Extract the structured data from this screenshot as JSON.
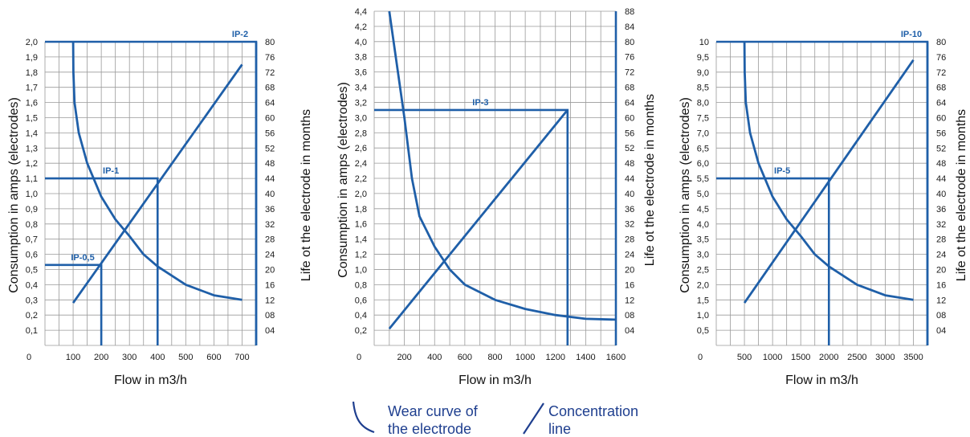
{
  "legend": {
    "wear_line1": "Wear curve of",
    "wear_line2": "the electrode",
    "conc_line1": "Concentration",
    "conc_line2": "line",
    "color": "#1f3f8f"
  },
  "line_color": "#1f5fa8",
  "grid_color": "#9a9a9a",
  "chart_data": [
    {
      "type": "line",
      "xlabel": "Flow in m3/h",
      "ylabel": "Consumption in amps (electrodes)",
      "y2label": "Life ot the electrode in months",
      "x_ticks": [
        "0",
        "100",
        "200",
        "300",
        "400",
        "500",
        "600",
        "700"
      ],
      "y_ticks": [
        "0,1",
        "0,2",
        "0,3",
        "0,4",
        "0,5",
        "0,6",
        "0,7",
        "0,8",
        "0,9",
        "1,0",
        "1,1",
        "1,2",
        "1,3",
        "1,4",
        "1,5",
        "1,6",
        "1,7",
        "1,8",
        "1,9",
        "2,0"
      ],
      "y2_ticks": [
        "04",
        "08",
        "12",
        "16",
        "20",
        "24",
        "28",
        "32",
        "36",
        "40",
        "44",
        "48",
        "52",
        "56",
        "60",
        "64",
        "68",
        "72",
        "76",
        "80"
      ],
      "xlim": [
        0,
        750
      ],
      "ylim": [
        0,
        2.0
      ],
      "y2lim": [
        0,
        80
      ],
      "wear_curve": {
        "x": [
          100,
          101,
          105,
          120,
          150,
          200,
          250,
          300,
          350,
          400,
          500,
          600,
          700
        ],
        "y": [
          2.0,
          1.8,
          1.6,
          1.4,
          1.2,
          0.98,
          0.83,
          0.72,
          0.6,
          0.52,
          0.4,
          0.33,
          0.3
        ]
      },
      "concentration_line": {
        "x": [
          100,
          700
        ],
        "y": [
          0.28,
          1.85
        ]
      },
      "models": [
        {
          "label": "IP-0,5",
          "flow": 200,
          "amps": 0.53
        },
        {
          "label": "IP-1",
          "flow": 400,
          "amps": 1.1
        },
        {
          "label": "IP-2",
          "flow": 750,
          "amps": 2.0
        }
      ]
    },
    {
      "type": "line",
      "xlabel": "Flow in m3/h",
      "ylabel": "Consumption in amps (electrodes)",
      "y2label": "Life ot the electrode in months",
      "x_ticks": [
        "0",
        "200",
        "400",
        "600",
        "800",
        "1000",
        "1200",
        "1400",
        "1600"
      ],
      "y_ticks": [
        "0,2",
        "0,4",
        "0,6",
        "0,8",
        "1,0",
        "1,2",
        "1,4",
        "1,6",
        "1,8",
        "2,0",
        "2,2",
        "2,4",
        "2,6",
        "2,8",
        "3,0",
        "3,2",
        "3,4",
        "3,6",
        "3,8",
        "4,0",
        "4,2",
        "4,4"
      ],
      "y2_ticks": [
        "04",
        "08",
        "12",
        "16",
        "20",
        "24",
        "28",
        "32",
        "36",
        "40",
        "44",
        "48",
        "52",
        "56",
        "60",
        "64",
        "68",
        "72",
        "76",
        "80",
        "84",
        "88"
      ],
      "xlim": [
        0,
        1600
      ],
      "ylim": [
        0,
        4.4
      ],
      "y2lim": [
        0,
        88
      ],
      "wear_curve": {
        "x": [
          100,
          150,
          200,
          250,
          300,
          400,
          500,
          600,
          800,
          1000,
          1200,
          1400,
          1600
        ],
        "y": [
          4.4,
          3.7,
          3.0,
          2.2,
          1.7,
          1.3,
          1.0,
          0.8,
          0.6,
          0.48,
          0.4,
          0.35,
          0.34
        ]
      },
      "concentration_line": {
        "x": [
          100,
          1280
        ],
        "y": [
          0.22,
          3.1
        ]
      },
      "models": [
        {
          "label": "IP-3",
          "flow": 1280,
          "amps": 3.1
        }
      ]
    },
    {
      "type": "line",
      "xlabel": "Flow in m3/h",
      "ylabel": "Consumption in amps (electrodes)",
      "y2label": "Life ot the electrode in months",
      "x_ticks": [
        "0",
        "500",
        "1000",
        "1500",
        "2000",
        "2500",
        "3000",
        "3500"
      ],
      "y_ticks": [
        "0,5",
        "1,0",
        "1,5",
        "2,0",
        "2,5",
        "3,0",
        "3,5",
        "4,0",
        "4,5",
        "5,0",
        "5,5",
        "6,0",
        "6,5",
        "7,0",
        "7,5",
        "8,0",
        "8,5",
        "9,0",
        "9,5",
        "10"
      ],
      "y2_ticks": [
        "04",
        "08",
        "12",
        "16",
        "20",
        "24",
        "28",
        "32",
        "36",
        "40",
        "44",
        "48",
        "52",
        "56",
        "60",
        "64",
        "68",
        "72",
        "76",
        "80"
      ],
      "xlim": [
        0,
        3750
      ],
      "ylim": [
        0,
        10
      ],
      "y2lim": [
        0,
        80
      ],
      "wear_curve": {
        "x": [
          500,
          505,
          525,
          600,
          750,
          1000,
          1250,
          1500,
          1750,
          2000,
          2500,
          3000,
          3500
        ],
        "y": [
          10,
          9.0,
          8.0,
          7.0,
          6.0,
          4.9,
          4.15,
          3.6,
          3.0,
          2.6,
          2.0,
          1.65,
          1.5
        ]
      },
      "concentration_line": {
        "x": [
          500,
          3500
        ],
        "y": [
          1.4,
          9.4
        ]
      },
      "models": [
        {
          "label": "IP-5",
          "flow": 2000,
          "amps": 5.5
        },
        {
          "label": "IP-10",
          "flow": 3750,
          "amps": 10
        }
      ]
    }
  ]
}
